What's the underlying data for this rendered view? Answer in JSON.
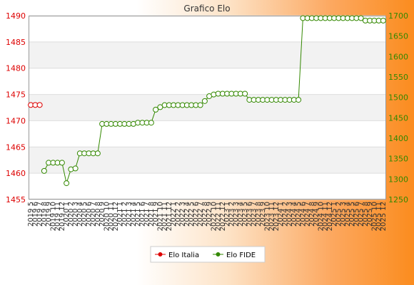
{
  "chart_data": {
    "type": "line",
    "title": "Grafico Elo",
    "left_axis": {
      "min": 1455,
      "max": 1490,
      "ticks": [
        "1455",
        "1460",
        "1465",
        "1470",
        "1475",
        "1480",
        "1485",
        "1490"
      ],
      "color": "#dd0000"
    },
    "right_axis": {
      "min": 1250,
      "max": 1700,
      "ticks": [
        "1250",
        "1300",
        "1350",
        "1400",
        "1450",
        "1500",
        "1550",
        "1600",
        "1650",
        "1700"
      ],
      "color": "#338800"
    },
    "x_tick_labels": [
      "2019 5",
      "2019 6",
      "2019 7",
      "2019 8",
      "2019 9",
      "2019 10",
      "2019 11",
      "2019 12",
      "2020 1",
      "2020 2",
      "2020 3",
      "2020 4",
      "2020 5",
      "2020 6",
      "2020 7",
      "2020 8",
      "2020 9",
      "2020 10",
      "2020 11",
      "2020 12",
      "2021 1",
      "2021 2",
      "2021 3",
      "2021 4",
      "2021 5",
      "2021 6",
      "2021 7",
      "2021 8",
      "2021 9",
      "2021 10",
      "2021 11",
      "2021 12",
      "2022 1",
      "2022 2",
      "2022 3",
      "2022 4",
      "2022 5",
      "2022 6",
      "2022 7",
      "2022 8",
      "2022 9",
      "2022 10",
      "2022 11",
      "2022 12",
      "2023 1",
      "2023 2",
      "2023 3",
      "2023 4",
      "2023 5",
      "2023 6",
      "2023 7",
      "2023 8",
      "2023 9",
      "2023 10",
      "2023 11",
      "2023 12",
      "2024 1",
      "2024 2",
      "2024 3",
      "2024 4",
      "2024 5",
      "2024 6",
      "2024 7",
      "2024 8",
      "2024 9",
      "2024 10",
      "2024 11",
      "2024 12",
      "2025 1",
      "2025 2",
      "2025 3",
      "2025 4",
      "2025 5",
      "2025 6",
      "2025 7",
      "2025 8",
      "2025 9",
      "2025 10",
      "2025 11",
      "2025 12"
    ],
    "series": [
      {
        "name": "Elo Italia",
        "axis": "left",
        "color": "#dd0000",
        "x": [
          "2019 5",
          "2019 6",
          "2019 7"
        ],
        "values": [
          1473,
          1473,
          1473
        ]
      },
      {
        "name": "Elo FIDE",
        "axis": "right",
        "color": "#338800",
        "x": [
          "2019 8",
          "2019 9",
          "2019 10",
          "2019 11",
          "2019 12",
          "2020 1",
          "2020 2",
          "2020 3",
          "2020 4",
          "2020 5",
          "2020 6",
          "2020 7",
          "2020 8",
          "2020 9",
          "2020 10",
          "2020 11",
          "2020 12",
          "2021 1",
          "2021 2",
          "2021 3",
          "2021 4",
          "2021 5",
          "2021 6",
          "2021 7",
          "2021 8",
          "2021 9",
          "2021 10",
          "2021 11",
          "2021 12",
          "2022 1",
          "2022 2",
          "2022 3",
          "2022 4",
          "2022 5",
          "2022 6",
          "2022 7",
          "2022 8",
          "2022 9",
          "2022 10",
          "2022 11",
          "2022 12",
          "2023 1",
          "2023 2",
          "2023 3",
          "2023 4",
          "2023 5",
          "2023 6",
          "2023 7",
          "2023 8",
          "2023 9",
          "2023 10",
          "2023 11",
          "2023 12",
          "2024 1",
          "2024 2",
          "2024 3",
          "2024 4",
          "2024 5",
          "2024 6",
          "2024 7",
          "2024 8",
          "2024 9",
          "2024 10",
          "2024 11",
          "2024 12",
          "2025 1",
          "2025 2",
          "2025 3",
          "2025 4",
          "2025 5",
          "2025 6",
          "2025 7",
          "2025 8",
          "2025 9",
          "2025 10",
          "2025 11",
          "2025 12"
        ],
        "values": [
          1320,
          1340,
          1340,
          1340,
          1340,
          1290,
          1324,
          1326,
          1363,
          1363,
          1363,
          1363,
          1363,
          1435,
          1435,
          1435,
          1435,
          1435,
          1435,
          1435,
          1435,
          1438,
          1438,
          1438,
          1438,
          1470,
          1476,
          1481,
          1481,
          1481,
          1481,
          1481,
          1481,
          1481,
          1481,
          1481,
          1491,
          1503,
          1507,
          1509,
          1509,
          1509,
          1509,
          1509,
          1509,
          1509,
          1494,
          1494,
          1494,
          1494,
          1494,
          1494,
          1494,
          1494,
          1494,
          1494,
          1494,
          1494,
          1694,
          1694,
          1694,
          1694,
          1694,
          1694,
          1694,
          1694,
          1694,
          1694,
          1694,
          1694,
          1694,
          1694,
          1688,
          1688,
          1688,
          1688,
          1688
        ]
      }
    ],
    "grid": true,
    "legend": "bottom-center"
  }
}
